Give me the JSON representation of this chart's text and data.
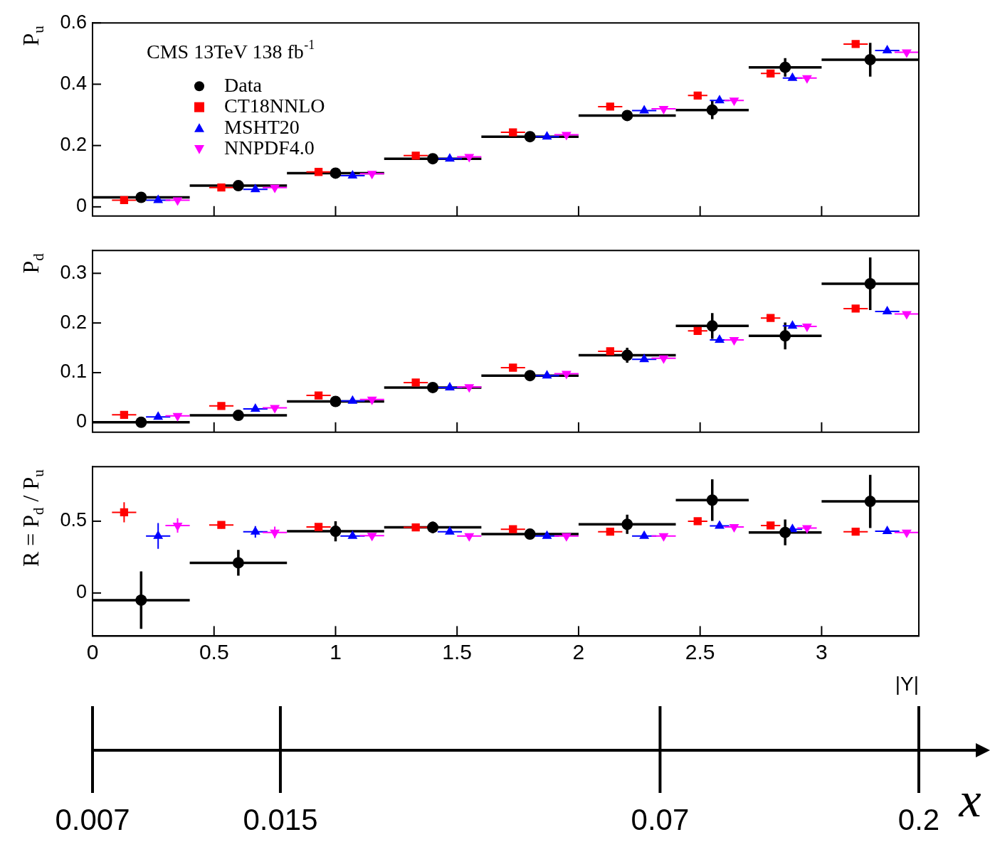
{
  "chart_data": [
    {
      "type": "scatter",
      "ylabel": "P$_{u}$",
      "annotations": [
        "CMS 13TeV 138 fb$^{-1}$"
      ],
      "legend": "top left",
      "grid": false,
      "tick_labels": "y",
      "xlim": [
        0,
        3.4
      ],
      "xticks": [
        0,
        0.5,
        1,
        1.5,
        2,
        2.5,
        3
      ],
      "ylim": [
        -0.03,
        0.6
      ],
      "yticks": [
        0,
        0.2,
        0.4,
        0.6
      ],
      "series": [
        {
          "name": "Data",
          "color": "#000000",
          "marker": "circle",
          "x": [
            0.2,
            0.6,
            1.0,
            1.4,
            1.8,
            2.2,
            2.55,
            2.85,
            3.2
          ],
          "values": [
            0.031,
            0.069,
            0.11,
            0.157,
            0.229,
            0.298,
            0.316,
            0.455,
            0.48
          ],
          "errors": [
            null,
            null,
            null,
            null,
            null,
            null,
            0.03,
            0.03,
            0.055
          ],
          "xerrors": [
            0.2,
            0.2,
            0.2,
            0.2,
            0.2,
            0.2,
            0.15,
            0.15,
            0.2
          ]
        },
        {
          "name": "CT18NNLO",
          "color": "#ff0000",
          "marker": "square",
          "x": [
            0.13,
            0.53,
            0.93,
            1.33,
            1.73,
            2.13,
            2.49,
            2.79,
            3.14
          ],
          "values": [
            0.022,
            0.063,
            0.114,
            0.167,
            0.243,
            0.327,
            0.363,
            0.435,
            0.531
          ],
          "xerrors": [
            0.05,
            0.05,
            0.05,
            0.05,
            0.05,
            0.05,
            0.04,
            0.04,
            0.05
          ]
        },
        {
          "name": "MSHT20",
          "color": "#0000ff",
          "marker": "triangle",
          "x": [
            0.27,
            0.67,
            1.07,
            1.47,
            1.87,
            2.27,
            2.58,
            2.88,
            3.27
          ],
          "values": [
            0.022,
            0.057,
            0.102,
            0.157,
            0.229,
            0.314,
            0.347,
            0.42,
            0.51
          ],
          "xerrors": [
            0.05,
            0.05,
            0.05,
            0.05,
            0.05,
            0.05,
            0.04,
            0.04,
            0.05
          ]
        },
        {
          "name": "NNPDF4.0",
          "color": "#ff00ff",
          "marker": "triangle-down",
          "x": [
            0.35,
            0.75,
            1.15,
            1.55,
            1.95,
            2.35,
            2.64,
            2.94,
            3.35
          ],
          "values": [
            0.022,
            0.063,
            0.108,
            0.163,
            0.235,
            0.32,
            0.347,
            0.42,
            0.504
          ],
          "xerrors": [
            0.05,
            0.05,
            0.05,
            0.05,
            0.05,
            0.05,
            0.04,
            0.04,
            0.05
          ]
        }
      ]
    },
    {
      "type": "scatter",
      "ylabel": "P$_{d}$",
      "grid": false,
      "tick_labels": "y",
      "xlim": [
        0,
        3.4
      ],
      "xticks": [
        0,
        0.5,
        1,
        1.5,
        2,
        2.5,
        3
      ],
      "ylim": [
        -0.02,
        0.346
      ],
      "yticks": [
        0,
        0.1,
        0.2,
        0.3
      ],
      "series": [
        {
          "color": "#000000",
          "marker": "circle",
          "x": [
            0.2,
            0.6,
            1.0,
            1.4,
            1.8,
            2.2,
            2.55,
            2.85,
            3.2
          ],
          "values": [
            0.0,
            0.014,
            0.042,
            0.07,
            0.094,
            0.135,
            0.194,
            0.174,
            0.279
          ],
          "errors": [
            null,
            null,
            null,
            null,
            null,
            0.015,
            0.026,
            0.027,
            0.053
          ],
          "xerrors": [
            0.2,
            0.2,
            0.2,
            0.2,
            0.2,
            0.2,
            0.15,
            0.15,
            0.2
          ]
        },
        {
          "color": "#ff0000",
          "marker": "square",
          "x": [
            0.13,
            0.53,
            0.93,
            1.33,
            1.73,
            2.13,
            2.49,
            2.79,
            3.14
          ],
          "values": [
            0.015,
            0.033,
            0.054,
            0.08,
            0.11,
            0.143,
            0.184,
            0.21,
            0.229
          ],
          "xerrors": [
            0.05,
            0.05,
            0.05,
            0.05,
            0.05,
            0.05,
            0.04,
            0.04,
            0.05
          ]
        },
        {
          "color": "#0000ff",
          "marker": "triangle",
          "x": [
            0.27,
            0.67,
            1.07,
            1.47,
            1.87,
            2.27,
            2.58,
            2.88,
            3.27
          ],
          "values": [
            0.011,
            0.027,
            0.043,
            0.07,
            0.094,
            0.127,
            0.166,
            0.194,
            0.223
          ],
          "xerrors": [
            0.05,
            0.05,
            0.05,
            0.05,
            0.05,
            0.05,
            0.04,
            0.04,
            0.05
          ]
        },
        {
          "color": "#ff00ff",
          "marker": "triangle-down",
          "x": [
            0.35,
            0.75,
            1.15,
            1.55,
            1.95,
            2.35,
            2.64,
            2.94,
            3.35
          ],
          "values": [
            0.013,
            0.029,
            0.046,
            0.071,
            0.098,
            0.129,
            0.166,
            0.193,
            0.218
          ],
          "xerrors": [
            0.05,
            0.05,
            0.05,
            0.05,
            0.05,
            0.05,
            0.04,
            0.04,
            0.05
          ]
        }
      ]
    },
    {
      "type": "scatter",
      "ylabel": "R = P$_{d}$ / P$_{u}$",
      "xlabel": "|Y|",
      "x2label": "x",
      "grid": false,
      "log": "x2",
      "xlim": [
        0,
        3.4
      ],
      "xticks": [
        0,
        0.5,
        1,
        1.5,
        2,
        2.5,
        3
      ],
      "x2lim": [
        0.007,
        0.2
      ],
      "x2ticks": [
        0.007,
        0.015,
        0.07,
        0.2
      ],
      "ylim": [
        -0.3,
        0.88
      ],
      "yticks": [
        0,
        0.5
      ],
      "series": [
        {
          "color": "#000000",
          "marker": "circle",
          "x": [
            0.2,
            0.6,
            1.0,
            1.4,
            1.8,
            2.2,
            2.55,
            2.85,
            3.2
          ],
          "values": [
            -0.05,
            0.21,
            0.43,
            0.457,
            0.41,
            0.478,
            0.647,
            0.422,
            0.638
          ],
          "errors": [
            0.2,
            0.09,
            0.07,
            0.04,
            0.03,
            0.067,
            0.145,
            0.09,
            0.185
          ],
          "xerrors": [
            0.2,
            0.2,
            0.2,
            0.2,
            0.2,
            0.2,
            0.15,
            0.15,
            0.2
          ]
        },
        {
          "color": "#ff0000",
          "marker": "square",
          "x": [
            0.13,
            0.53,
            0.93,
            1.33,
            1.73,
            2.13,
            2.49,
            2.79,
            3.14
          ],
          "values": [
            0.562,
            0.474,
            0.46,
            0.457,
            0.444,
            0.427,
            0.5,
            0.47,
            0.427
          ],
          "errors": [
            0.07,
            0.025,
            null,
            null,
            null,
            null,
            null,
            null,
            null
          ],
          "xerrors": [
            0.05,
            0.05,
            0.05,
            0.05,
            0.05,
            0.05,
            0.04,
            0.04,
            0.05
          ]
        },
        {
          "color": "#0000ff",
          "marker": "triangle",
          "x": [
            0.27,
            0.67,
            1.07,
            1.47,
            1.87,
            2.27,
            2.58,
            2.88,
            3.27
          ],
          "values": [
            0.397,
            0.426,
            0.397,
            0.427,
            0.397,
            0.397,
            0.467,
            0.444,
            0.43
          ],
          "errors": [
            0.09,
            0.04,
            null,
            null,
            null,
            null,
            null,
            null,
            null
          ],
          "xerrors": [
            0.05,
            0.05,
            0.05,
            0.05,
            0.05,
            0.05,
            0.04,
            0.04,
            0.05
          ]
        },
        {
          "color": "#ff00ff",
          "marker": "triangle-down",
          "x": [
            0.35,
            0.75,
            1.15,
            1.55,
            1.95,
            2.35,
            2.64,
            2.94,
            3.35
          ],
          "values": [
            0.47,
            0.422,
            0.399,
            0.397,
            0.397,
            0.397,
            0.46,
            0.452,
            0.422
          ],
          "errors": [
            0.05,
            0.04,
            null,
            null,
            null,
            null,
            null,
            null,
            null
          ],
          "xerrors": [
            0.05,
            0.05,
            0.05,
            0.05,
            0.05,
            0.05,
            0.04,
            0.04,
            0.05
          ]
        }
      ]
    }
  ]
}
